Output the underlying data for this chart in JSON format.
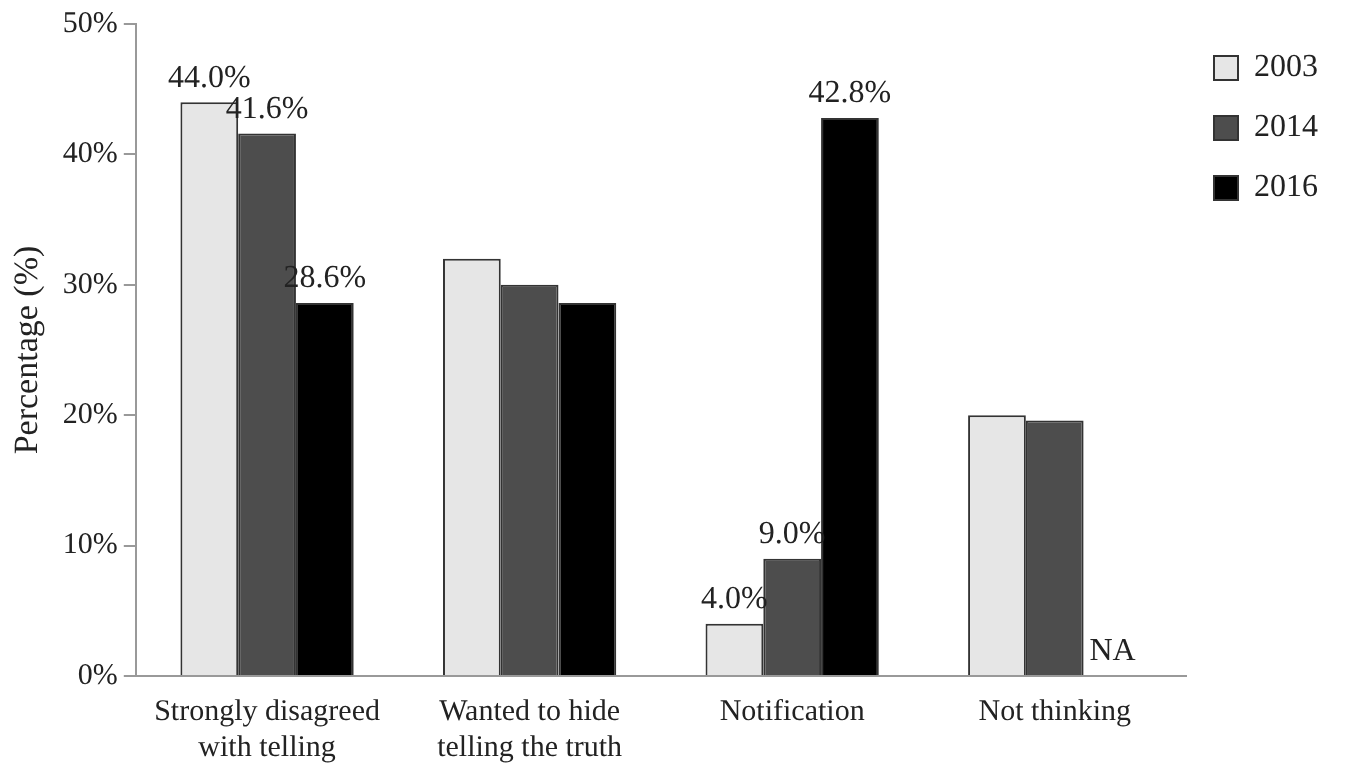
{
  "chart_data": {
    "type": "bar",
    "ylabel": "Percentage (%)",
    "categories": [
      "Strongly disagreed with telling",
      "Wanted to hide telling the truth",
      "Notification",
      "Not thinking"
    ],
    "series": [
      {
        "name": "2003",
        "color": "#e6e6e6",
        "values": [
          44.0,
          32.0,
          4.0,
          20.0
        ],
        "value_labels": [
          "44.0%",
          null,
          "4.0%",
          null
        ]
      },
      {
        "name": "2014",
        "color": "#4d4d4d",
        "values": [
          41.6,
          30.0,
          9.0,
          19.6
        ],
        "value_labels": [
          "41.6%",
          null,
          "9.0%",
          null
        ]
      },
      {
        "name": "2016",
        "color": "#000000",
        "values": [
          28.6,
          28.6,
          42.8,
          null
        ],
        "value_labels": [
          "28.6%",
          null,
          "42.8%",
          "NA"
        ]
      }
    ],
    "ylim": [
      0,
      50
    ],
    "yticks": [
      {
        "value": 0,
        "label": "0%"
      },
      {
        "value": 10,
        "label": "10%"
      },
      {
        "value": 20,
        "label": "20%"
      },
      {
        "value": 30,
        "label": "30%"
      },
      {
        "value": 40,
        "label": "40%"
      },
      {
        "value": 50,
        "label": "50%"
      }
    ],
    "grid": false,
    "legend": "top right"
  }
}
